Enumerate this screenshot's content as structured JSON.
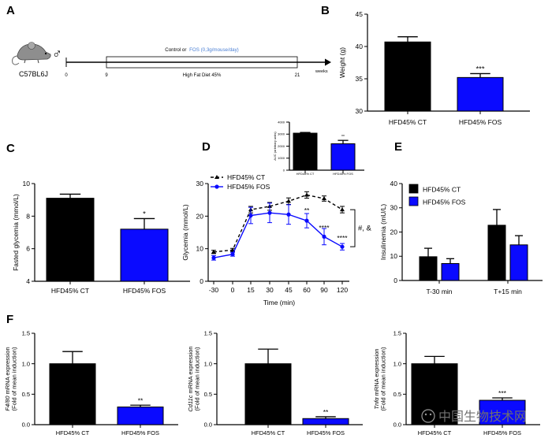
{
  "panel_letters": {
    "a": "A",
    "b": "B",
    "c": "C",
    "d": "D",
    "e": "E",
    "f": "F"
  },
  "panel_a": {
    "strain": "C57BL6J",
    "sex_symbol": "♂",
    "treatment_prefix": "Control or",
    "treatment_fos": "FOS (0,3g/mouse/day)",
    "diet": "High Fat Diet 45%",
    "weeks_unit": "weeks",
    "timeline_ticks": [
      "0",
      "9",
      "21"
    ],
    "colors": {
      "fos": "#4a7fd4"
    }
  },
  "colors": {
    "ct": "#000000",
    "fos": "#0a0aff"
  },
  "chart_data": [
    {
      "id": "weight",
      "type": "bar",
      "title": "",
      "xlabel": "",
      "ylabel": "Weight (g)",
      "ylim": [
        30,
        45
      ],
      "yticks": [
        "30",
        "35",
        "40",
        "45"
      ],
      "categories": [
        "HFD45% CT",
        "HFD45% FOS"
      ],
      "values": [
        40.7,
        35.2
      ],
      "errors": [
        0.8,
        0.6
      ],
      "annotations": [
        "",
        "***"
      ]
    },
    {
      "id": "glycemia",
      "type": "bar",
      "title": "",
      "xlabel": "",
      "ylabel": "Fasted glycemia (mmol/L)",
      "ylim": [
        4,
        10
      ],
      "yticks": [
        "4",
        "6",
        "8",
        "10"
      ],
      "categories": [
        "HFD45% CT",
        "HFD45% FOS"
      ],
      "values": [
        9.1,
        7.2
      ],
      "errors": [
        0.25,
        0.65
      ],
      "annotations": [
        "",
        "*"
      ]
    },
    {
      "id": "ogtt",
      "type": "line",
      "title": "",
      "xlabel": "Time (min)",
      "ylabel": "Glycemia (mmol/L)",
      "xlim": [
        -30,
        120
      ],
      "ylim": [
        0,
        30
      ],
      "xticks": [
        "-30",
        "0",
        "15",
        "30",
        "45",
        "60",
        "90",
        "120"
      ],
      "yticks": [
        "0",
        "10",
        "20",
        "30"
      ],
      "legend": [
        "HFD45% CT",
        "HFD45% FOS"
      ],
      "series": [
        {
          "name": "HFD45% CT",
          "style": "dashed",
          "x": [
            -30,
            0,
            15,
            30,
            45,
            60,
            90,
            120
          ],
          "y": [
            9,
            9.6,
            22,
            23,
            24.6,
            26.5,
            25.4,
            22
          ],
          "err": [
            0.5,
            0.5,
            1,
            1.2,
            1,
            1,
            0.8,
            1
          ]
        },
        {
          "name": "HFD45% FOS",
          "style": "solid",
          "x": [
            -30,
            0,
            15,
            30,
            45,
            60,
            90,
            120
          ],
          "y": [
            7.2,
            8.3,
            20.2,
            21,
            20.5,
            18.6,
            13.7,
            10.6
          ],
          "err": [
            0.7,
            0.6,
            2.5,
            3,
            3,
            2.2,
            2.5,
            1
          ]
        }
      ],
      "point_annotations": [
        "**",
        "****",
        "****"
      ],
      "bracket_label": "#, &"
    },
    {
      "id": "auc",
      "type": "bar",
      "title": "",
      "xlabel": "",
      "ylabel": "AUC (arbitrary units)",
      "ylim": [
        0,
        4000
      ],
      "yticks": [
        "0",
        "1000",
        "2000",
        "3000",
        "4000"
      ],
      "categories": [
        "HFD45% CT",
        "HFD45% FOS"
      ],
      "values": [
        3080,
        2200
      ],
      "errors": [
        60,
        280
      ],
      "annotations": [
        "",
        "**"
      ]
    },
    {
      "id": "insulin",
      "type": "bar",
      "title": "",
      "xlabel": "",
      "ylabel": "Insulinemia (mU/L)",
      "ylim": [
        0,
        40
      ],
      "yticks": [
        "0",
        "10",
        "20",
        "30",
        "40"
      ],
      "categories": [
        "T-30 min",
        "T+15 min"
      ],
      "legend": [
        "HFD45% CT",
        "HFD45% FOS"
      ],
      "series": [
        {
          "name": "HFD45% CT",
          "values": [
            9.8,
            22.8
          ],
          "errors": [
            3.5,
            6.5
          ]
        },
        {
          "name": "HFD45% FOS",
          "values": [
            7.0,
            14.7
          ],
          "errors": [
            2.0,
            3.8
          ]
        }
      ]
    },
    {
      "id": "f480",
      "type": "bar",
      "title": "",
      "xlabel": "",
      "ylabel_gene": "F4/80",
      "ylabel_rest": " mRNA expression",
      "ylabel2": "(Fold of mean induction)",
      "ylim": [
        0,
        1.5
      ],
      "yticks": [
        "0.0",
        "0.5",
        "1.0",
        "1.5"
      ],
      "categories": [
        "HFD45% CT",
        "HFD45% FOS"
      ],
      "values": [
        1.0,
        0.29
      ],
      "errors": [
        0.2,
        0.03
      ],
      "annotations": [
        "",
        "**"
      ]
    },
    {
      "id": "cd11c",
      "type": "bar",
      "title": "",
      "xlabel": "",
      "ylabel_gene": "Cd11c",
      "ylabel_rest": " mRNA expression",
      "ylabel2": "(Fold of mean induction)",
      "ylim": [
        0,
        1.5
      ],
      "yticks": [
        "0.0",
        "0.5",
        "1.0",
        "1.5"
      ],
      "categories": [
        "HFD45% CT",
        "HFD45% FOS"
      ],
      "values": [
        1.0,
        0.1
      ],
      "errors": [
        0.24,
        0.03
      ],
      "annotations": [
        "",
        "**"
      ]
    },
    {
      "id": "tnfa",
      "type": "bar",
      "title": "",
      "xlabel": "",
      "ylabel_gene": "Tnfα",
      "ylabel_rest": " mRNA expression",
      "ylabel2": "(Fold of mean induction)",
      "ylim": [
        0,
        1.5
      ],
      "yticks": [
        "0.0",
        "0.5",
        "1.0",
        "1.5"
      ],
      "categories": [
        "HFD45% CT",
        "HFD45% FOS"
      ],
      "values": [
        1.0,
        0.4
      ],
      "errors": [
        0.12,
        0.04
      ],
      "annotations": [
        "",
        "***"
      ]
    }
  ],
  "watermark": "中国生物技术网"
}
